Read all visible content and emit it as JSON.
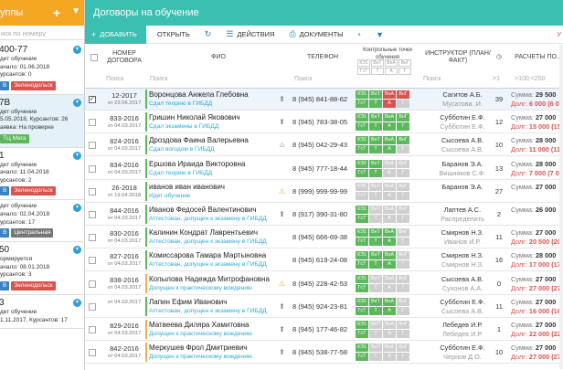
{
  "sidebar": {
    "title": "уппы",
    "search_placeholder": "иск по номеру",
    "groups": [
      {
        "name": "400-77",
        "status": "дет обучение",
        "l1": "ачало: 01.06.2018",
        "l2": "урсантов: 0",
        "l3": "",
        "tags": [
          {
            "t": "В",
            "c": "b"
          },
          {
            "t": "Зеленодольск",
            "c": "r"
          }
        ]
      },
      {
        "name": "7В",
        "status": "дет обучение",
        "l1": "5.05.2018, Курсантов: 26",
        "l2": "аявка: На проверке",
        "l3": "",
        "tags": [
          {
            "t": "ТЦ Мега",
            "c": "g"
          }
        ]
      },
      {
        "name": "1",
        "status": "дет обучение",
        "l1": "ачало: 11.04.2018",
        "l2": "урсантов: 2",
        "l3": "",
        "tags": [
          {
            "t": "В",
            "c": "b"
          },
          {
            "t": "Зеленодольск",
            "c": "r"
          }
        ]
      },
      {
        "name": "",
        "status": "дет обучение",
        "l1": "ачало: 02.04.2018",
        "l2": "урсантов: 17",
        "l3": "",
        "tags": [
          {
            "t": "В",
            "c": "b"
          },
          {
            "t": "Центральная",
            "c": "gr"
          }
        ]
      },
      {
        "name": "50",
        "status": "ормируется",
        "l1": "ачало: 08.01.2018",
        "l2": "урсантов: 3",
        "l3": "",
        "tags": [
          {
            "t": "В",
            "c": "b"
          },
          {
            "t": "Зеленодольск",
            "c": "r"
          }
        ]
      },
      {
        "name": "3",
        "status": "дет обучение",
        "l1": "1.11.2017, Курсантов: 17",
        "l2": "",
        "l3": "",
        "tags": []
      }
    ]
  },
  "header": {
    "title": "Договоры на обучение"
  },
  "toolbar": {
    "add": "ДОБАВИТЬ",
    "open": "ОТКРЫТЬ",
    "actions": "ДЕЙСТВИЯ",
    "docs": "ДОКУМЕНТЫ",
    "right": "У"
  },
  "columns": {
    "num": "НОМЕР ДОГОВОРА",
    "fio": "ФИО",
    "phone": "ТЕЛЕФОН",
    "points": "Контрольные точки обучения",
    "instructor": "ИНСТРУКТОР (ПЛАН/ФАКТ)",
    "payments": "РАСЧЕТЫ ПО...",
    "point_labels": [
      "КЭ1",
      "ВнТ",
      "ВнА",
      "ВнГ",
      "ГсТ",
      "Т",
      "А",
      "Г"
    ],
    "filter_search": "Поиск",
    "filter_cnt": ">1",
    "filter_pay": ">100;<250"
  },
  "rows": [
    {
      "num": "12-2017",
      "date": "от 23.06.2017",
      "fio": "Воронцова Анжела Глебовна",
      "status": "Сдал теорию в ГИБДД",
      "icon": "up",
      "phone": "8 (945) 841-88-62",
      "ins1": "Сагитов А.Б.",
      "ins2": "Мусатова .И.",
      "cnt": "39",
      "sum": "Сумма:",
      "sumv": "29 500",
      "debt": "Долг:",
      "debtv": "6 000 (6 000)",
      "sel": true,
      "bar": "#5cb85c",
      "b": [
        "g",
        "g",
        "r",
        "r",
        "g",
        "g",
        "r",
        "x"
      ]
    },
    {
      "num": "833-2016",
      "date": "от 04.03.2017",
      "fio": "Гришин Николай Яковович",
      "status": "Сдал экзамены в ГИБДД",
      "icon": "up",
      "phone": "8 (945) 783-38-05",
      "ins1": "Субботин Е.Ф.",
      "ins2": "Субботин Е.Ф.",
      "cnt": "12",
      "sum": "Сумма:",
      "sumv": "27 000",
      "debt": "Долг:",
      "debtv": "15 000 (15 000)",
      "bar": "#5cb85c",
      "b": [
        "g",
        "g",
        "g",
        "g",
        "g",
        "g",
        "g",
        "g"
      ]
    },
    {
      "num": "824-2016",
      "date": "от 04.03.2017",
      "fio": "Дроздова Фаина Валерьевна",
      "status": "Сдал вогодом в ГИБДД",
      "icon": "home",
      "phone": "8 (945) 042-29-43",
      "ins1": "Сысоева А.В.",
      "ins2": "Сысоева А.В.",
      "cnt": "10",
      "sum": "Сумма:",
      "sumv": "28 000",
      "debt": "Долг:",
      "debtv": "11 000 (11 000)",
      "bar": "#5cb85c",
      "b": [
        "g",
        "g",
        "g",
        "g",
        "g",
        "g",
        "g",
        "x"
      ]
    },
    {
      "num": "834-2016",
      "date": "от 04.03.2017",
      "fio": "Ершова Ираида Викторовна",
      "status": "Сдал теорию в ГИБДД",
      "icon": "",
      "phone": "8 (945) 777-18-44",
      "ins1": "Баранов Э.А.",
      "ins2": "Вишняков С.Ф.",
      "cnt": "13",
      "sum": "Сумма:",
      "sumv": "28 000",
      "debt": "Долг:",
      "debtv": "7 000 (7 000)",
      "bar": "#5cb85c",
      "b": [
        "g",
        "g",
        "x",
        "x",
        "g",
        "g",
        "x",
        "x"
      ]
    },
    {
      "num": "26-2018",
      "date": "от 19.04.2018",
      "fio": "иванов иван иванович",
      "status": "Идет обучение",
      "icon": "warn",
      "phone": "8 (999) 999-99-99",
      "ins1": "Баранов Э.А.",
      "ins2": "",
      "cnt": "27",
      "sum": "Сумма:",
      "sumv": "27 000",
      "debt": "",
      "debtv": "",
      "bar": "#5cb85c",
      "b": [
        "x",
        "x",
        "x",
        "x",
        "x",
        "x",
        "x",
        "x"
      ]
    },
    {
      "num": "844-2016",
      "date": "от 04.03.2017",
      "fio": "Иванов Федосей Валентинович",
      "status": "Аттестован, допущен к экзамену в ГИБДД",
      "icon": "up",
      "phone": "8 (917) 390-31-80",
      "ins1": "Лаптев А.С.",
      "ins2": "Распределить",
      "cnt": "2",
      "sum": "Сумма:",
      "sumv": "26 000",
      "debt": "",
      "debtv": "",
      "bar": "#5cb85c",
      "b": [
        "g",
        "x",
        "x",
        "x",
        "g",
        "x",
        "x",
        "x"
      ]
    },
    {
      "num": "830-2016",
      "date": "от 04.03.2017",
      "fio": "Калинин Кондрат Лаврентьевич",
      "status": "Аттестован, допущен к экзамену в ГИБДД",
      "icon": "",
      "phone": "8 (945) 666-69-38",
      "ins1": "Смирнов Н.З.",
      "ins2": "Иванов И.Р.",
      "cnt": "11",
      "sum": "Сумма:",
      "sumv": "27 000",
      "debt": "Долг:",
      "debtv": "20 500 (20 500)",
      "bar": "#5cb85c",
      "b": [
        "g",
        "g",
        "g",
        "x",
        "g",
        "g",
        "g",
        "x"
      ]
    },
    {
      "num": "827-2016",
      "date": "от 04.03.2017",
      "fio": "Комиссарова Тамара Мартыновна",
      "status": "Аттестован, допущен к экзамену в ГИБДД",
      "icon": "",
      "phone": "8 (945) 619-24-08",
      "ins1": "Смирнов Н.З.",
      "ins2": "Смирнов Н.З.",
      "cnt": "16",
      "sum": "Сумма:",
      "sumv": "28 000",
      "debt": "Долг:",
      "debtv": "17 000 (17 000)",
      "bar": "#5cb85c",
      "b": [
        "g",
        "g",
        "g",
        "x",
        "g",
        "g",
        "g",
        "x"
      ]
    },
    {
      "num": "838-2016",
      "date": "от 04.03.2017",
      "fio": "Копылова Надежда Митрофановна",
      "status": "Допущен к практическому вождению",
      "icon": "warn",
      "phone": "8 (945) 228-42-53",
      "ins1": "Сысоева А.В.",
      "ins2": "Сухонов А.А.",
      "cnt": "0",
      "sum": "Сумма:",
      "sumv": "27 000",
      "debt": "Долг:",
      "debtv": "27 000 (27 000)",
      "bar": "#f0ad4e",
      "b": [
        "g",
        "x",
        "x",
        "x",
        "g",
        "x",
        "x",
        "x"
      ]
    },
    {
      "num": "",
      "date": "от 04.03.2017",
      "fio": "Лапин Ефим Иванович",
      "status": "Аттестован, допущен к экзамену в ГИБДД",
      "icon": "up",
      "phone": "8 (945) 924-23-81",
      "ins1": "Субботин Е.Ф.",
      "ins2": "Сысоева А.В.",
      "cnt": "11",
      "sum": "Сумма:",
      "sumv": "27 000",
      "debt": "Долг:",
      "debtv": "16 000 (16 000)",
      "bar": "#5cb85c",
      "b": [
        "g",
        "g",
        "g",
        "x",
        "g",
        "g",
        "g",
        "x"
      ]
    },
    {
      "num": "829-2016",
      "date": "от 04.03.2017",
      "fio": "Матвеева Диляра Хамитовна",
      "status": "Допущен к практическому вождению",
      "icon": "up",
      "phone": "8 (945) 177-46-82",
      "ins1": "Лебедев И.Р.",
      "ins2": "Лебедев И.Р.",
      "cnt": "1",
      "sum": "Сумма:",
      "sumv": "27 000",
      "debt": "Долг:",
      "debtv": "22 000 (22 000)",
      "bar": "#f0ad4e",
      "b": [
        "g",
        "x",
        "x",
        "x",
        "g",
        "x",
        "x",
        "x"
      ]
    },
    {
      "num": "842-2016",
      "date": "от 04.03.2017",
      "fio": "Меркушев Фрол Дмитриевич",
      "status": "Допущен к практическому вождению",
      "icon": "up",
      "phone": "8 (945) 538-77-58",
      "ins1": "Субботин Е.Ф.",
      "ins2": "Чернов Д.О.",
      "cnt": "10",
      "sum": "Сумма:",
      "sumv": "27 000",
      "debt": "Долг:",
      "debtv": "27 000 (27 000)",
      "bar": "#f0ad4e",
      "b": [
        "g",
        "x",
        "x",
        "x",
        "g",
        "x",
        "x",
        "x"
      ]
    }
  ]
}
